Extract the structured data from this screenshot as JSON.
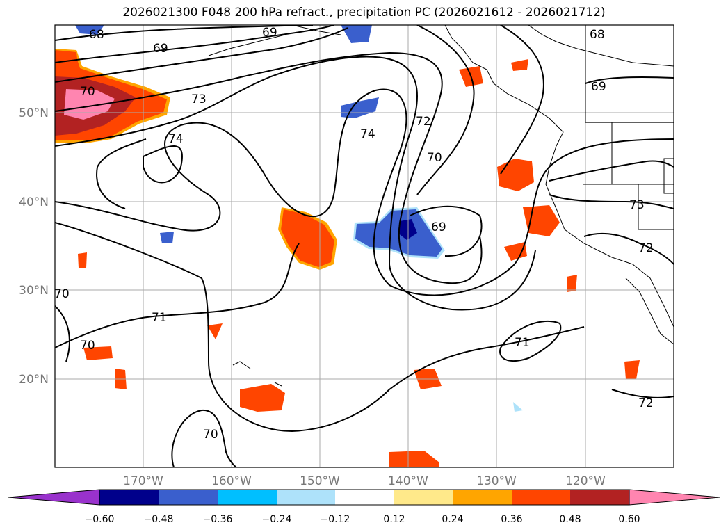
{
  "title": "2026021300 F048 200 hPa refract., precipitation PC (2026021612 - 2026021712)",
  "lat_ticks": [
    "50°N",
    "40°N",
    "30°N",
    "20°N"
  ],
  "lon_ticks": [
    "170°W",
    "160°W",
    "150°W",
    "140°W",
    "130°W",
    "120°W"
  ],
  "colorbar": {
    "ticks": [
      "−0.60",
      "−0.48",
      "−0.36",
      "−0.24",
      "−0.12",
      "0.12",
      "0.24",
      "0.36",
      "0.48",
      "0.60"
    ],
    "colors": [
      "#9932cc",
      "#00008b",
      "#3a5fcd",
      "#00bfff",
      "#aee2fa",
      "#ffffff",
      "#ffe98a",
      "#ffa500",
      "#ff4500",
      "#b22222",
      "#ff85b0"
    ]
  },
  "contour_labels": [
    {
      "text": "68"
    },
    {
      "text": "69"
    },
    {
      "text": "69"
    },
    {
      "text": "68"
    },
    {
      "text": "69"
    },
    {
      "text": "70"
    },
    {
      "text": "73"
    },
    {
      "text": "74"
    },
    {
      "text": "74"
    },
    {
      "text": "72"
    },
    {
      "text": "70"
    },
    {
      "text": "69"
    },
    {
      "text": "73"
    },
    {
      "text": "72"
    },
    {
      "text": "70"
    },
    {
      "text": "71"
    },
    {
      "text": "70"
    },
    {
      "text": "71"
    },
    {
      "text": "70"
    },
    {
      "text": "72"
    }
  ]
}
